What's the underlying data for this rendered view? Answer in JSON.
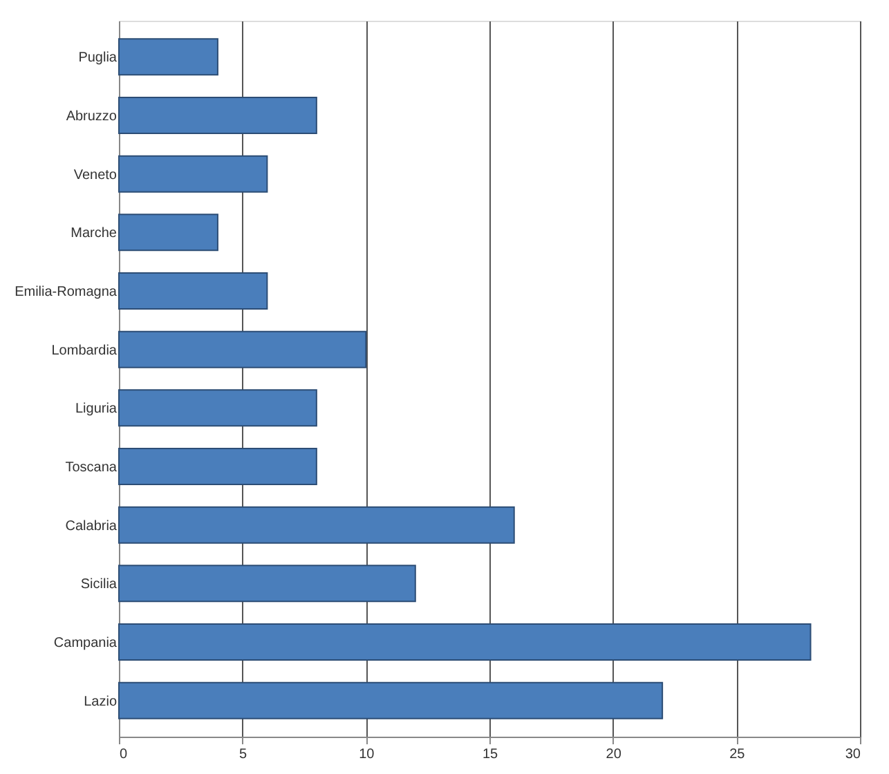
{
  "chart_data": {
    "type": "bar",
    "orientation": "horizontal",
    "categories": [
      "Puglia",
      "Abruzzo",
      "Veneto",
      "Marche",
      "Emilia-Romagna",
      "Lombardia",
      "Liguria",
      "Toscana",
      "Calabria",
      "Sicilia",
      "Campania",
      "Lazio"
    ],
    "values": [
      4,
      8,
      6,
      4,
      6,
      10,
      8,
      8,
      16,
      12,
      28,
      22
    ],
    "color": "#4a7ebb",
    "xlim": [
      0,
      30
    ],
    "xticks": [
      0,
      5,
      10,
      15,
      20,
      25,
      30
    ],
    "grid": "x"
  }
}
